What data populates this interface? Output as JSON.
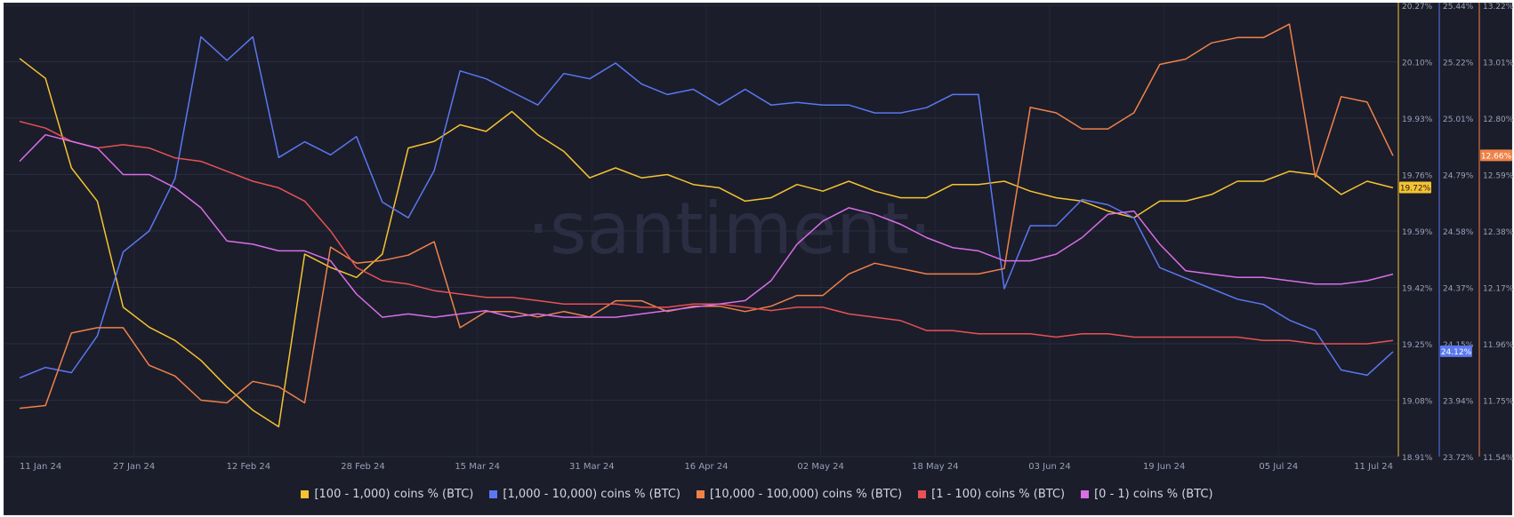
{
  "watermark": "·santiment·",
  "chart_data": {
    "type": "line",
    "x_labels": [
      "11 Jan 24",
      "27 Jan 24",
      "12 Feb 24",
      "28 Feb 24",
      "15 Mar 24",
      "31 Mar 24",
      "16 Apr 24",
      "02 May 24",
      "18 May 24",
      "03 Jun 24",
      "19 Jun 24",
      "05 Jul 24",
      "11 Jul 24"
    ],
    "grid": true,
    "legend_position": "bottom",
    "axes": [
      {
        "id": "yellow",
        "color": "#f5c330",
        "ylim": [
          18.91,
          20.27
        ],
        "ticks": [
          "20.27%",
          "20.10%",
          "19.93%",
          "19.76%",
          "19.59%",
          "19.42%",
          "19.25%",
          "19.08%",
          "18.91%"
        ],
        "current_label": "19.72%",
        "current_value": 19.72
      },
      {
        "id": "blue",
        "color": "#5a78f0",
        "ylim": [
          23.72,
          25.44
        ],
        "ticks": [
          "25.44%",
          "25.22%",
          "25.01%",
          "24.79%",
          "24.58%",
          "24.37%",
          "24.15%",
          "23.94%",
          "23.72%"
        ],
        "current_label": "24.12%",
        "current_value": 24.12
      },
      {
        "id": "orange",
        "color": "#f08248",
        "ylim": [
          11.54,
          13.22
        ],
        "ticks": [
          "13.22%",
          "13.01%",
          "12.80%",
          "12.59%",
          "12.38%",
          "12.17%",
          "11.96%",
          "11.75%",
          "11.54%"
        ],
        "current_label": "12.66%",
        "current_value": 12.66
      }
    ],
    "series": [
      {
        "name": "[100 - 1,000) coins % (BTC)",
        "color": "#f5c330",
        "axis": "yellow",
        "values": [
          20.11,
          20.05,
          19.78,
          19.68,
          19.36,
          19.3,
          19.26,
          19.2,
          19.12,
          19.05,
          19.0,
          19.52,
          19.48,
          19.45,
          19.52,
          19.84,
          19.86,
          19.91,
          19.89,
          19.95,
          19.88,
          19.83,
          19.75,
          19.78,
          19.75,
          19.76,
          19.73,
          19.72,
          19.68,
          19.69,
          19.73,
          19.71,
          19.74,
          19.71,
          19.69,
          19.69,
          19.73,
          19.73,
          19.74,
          19.71,
          19.69,
          19.68,
          19.65,
          19.63,
          19.68,
          19.68,
          19.7,
          19.74,
          19.74,
          19.77,
          19.76,
          19.7,
          19.74,
          19.72
        ]
      },
      {
        "name": "[1,000 - 10,000) coins % (BTC)",
        "color": "#5a78f0",
        "axis": "blue",
        "values": [
          24.02,
          24.06,
          24.04,
          24.18,
          24.5,
          24.58,
          24.78,
          25.32,
          25.23,
          25.32,
          24.86,
          24.92,
          24.87,
          24.94,
          24.69,
          24.63,
          24.81,
          25.19,
          25.16,
          25.11,
          25.06,
          25.18,
          25.16,
          25.22,
          25.14,
          25.1,
          25.12,
          25.06,
          25.12,
          25.06,
          25.07,
          25.06,
          25.06,
          25.03,
          25.03,
          25.05,
          25.1,
          25.1,
          24.36,
          24.6,
          24.6,
          24.7,
          24.68,
          24.63,
          24.44,
          24.4,
          24.36,
          24.32,
          24.3,
          24.24,
          24.2,
          24.05,
          24.03,
          24.12
        ]
      },
      {
        "name": "[10,000 - 100,000) coins % (BTC)",
        "color": "#f08248",
        "axis": "orange",
        "values": [
          11.72,
          11.73,
          12.0,
          12.02,
          12.02,
          11.88,
          11.84,
          11.75,
          11.74,
          11.82,
          11.8,
          11.74,
          12.32,
          12.26,
          12.27,
          12.29,
          12.34,
          12.02,
          12.08,
          12.08,
          12.06,
          12.08,
          12.06,
          12.12,
          12.12,
          12.08,
          12.1,
          12.1,
          12.08,
          12.1,
          12.14,
          12.14,
          12.22,
          12.26,
          12.24,
          12.22,
          12.22,
          12.22,
          12.24,
          12.84,
          12.82,
          12.76,
          12.76,
          12.82,
          13.0,
          13.02,
          13.08,
          13.1,
          13.1,
          13.15,
          12.58,
          12.88,
          12.86,
          12.66
        ]
      },
      {
        "name": "[1 - 100) coins % (BTC)",
        "color": "#e85252",
        "axis": "yellow",
        "values": [
          19.92,
          19.9,
          19.86,
          19.84,
          19.85,
          19.84,
          19.81,
          19.8,
          19.77,
          19.74,
          19.72,
          19.68,
          19.59,
          19.48,
          19.44,
          19.43,
          19.41,
          19.4,
          19.39,
          19.39,
          19.38,
          19.37,
          19.37,
          19.37,
          19.36,
          19.36,
          19.37,
          19.37,
          19.36,
          19.35,
          19.36,
          19.36,
          19.34,
          19.33,
          19.32,
          19.29,
          19.29,
          19.28,
          19.28,
          19.28,
          19.27,
          19.28,
          19.28,
          19.27,
          19.27,
          19.27,
          19.27,
          19.27,
          19.26,
          19.26,
          19.25,
          19.25,
          19.25,
          19.26
        ]
      },
      {
        "name": "[0 - 1) coins % (BTC)",
        "color": "#d96ee6",
        "axis": "yellow",
        "values": [
          19.8,
          19.88,
          19.86,
          19.84,
          19.76,
          19.76,
          19.72,
          19.66,
          19.56,
          19.55,
          19.53,
          19.53,
          19.5,
          19.4,
          19.33,
          19.34,
          19.33,
          19.34,
          19.35,
          19.33,
          19.34,
          19.33,
          19.33,
          19.33,
          19.34,
          19.35,
          19.36,
          19.37,
          19.38,
          19.44,
          19.55,
          19.62,
          19.66,
          19.64,
          19.61,
          19.57,
          19.54,
          19.53,
          19.5,
          19.5,
          19.52,
          19.57,
          19.64,
          19.65,
          19.55,
          19.47,
          19.46,
          19.45,
          19.45,
          19.44,
          19.43,
          19.43,
          19.44,
          19.46
        ]
      }
    ]
  }
}
